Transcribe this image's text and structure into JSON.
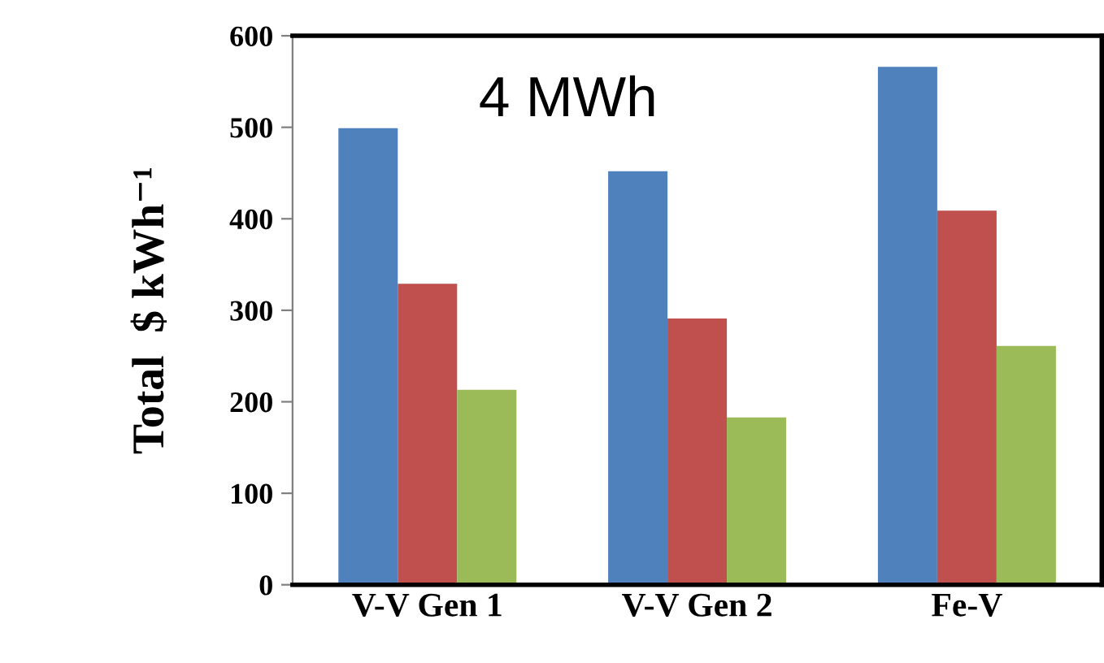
{
  "chart_data": {
    "type": "bar",
    "ylabel": "Total  $ kWh⁻¹",
    "categories": [
      "V-V Gen 1",
      "V-V Gen 2",
      "Fe-V"
    ],
    "series": [
      {
        "color": "#4f81bd",
        "values": [
          499,
          452,
          566
        ]
      },
      {
        "color": "#c0504d",
        "values": [
          329,
          291,
          409
        ]
      },
      {
        "color": "#9bbb59",
        "values": [
          213,
          183,
          261
        ]
      }
    ],
    "ylim": [
      0,
      600
    ],
    "yticks": [
      0,
      100,
      200,
      300,
      400,
      500,
      600
    ],
    "annotations": [
      "4 MWh"
    ]
  }
}
